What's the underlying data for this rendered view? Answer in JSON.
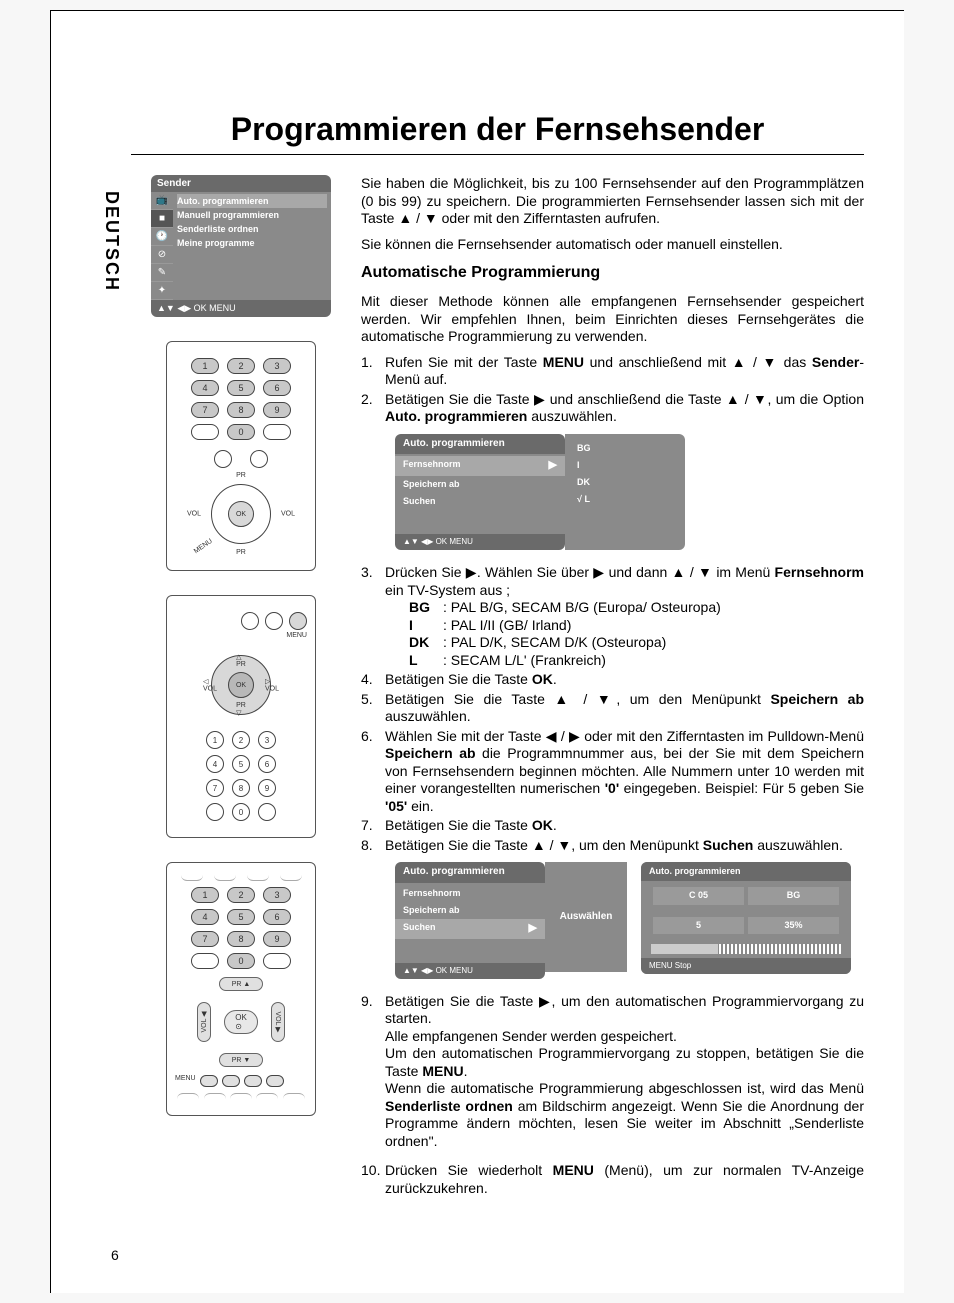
{
  "page_number": "6",
  "lang_tab": "DEUTSCH",
  "title": "Programmieren der Fernsehsender",
  "intro1": "Sie haben die Möglichkeit, bis zu 100 Fernsehsender auf den Programmplätzen (0 bis 99) zu speichern. Die programmierten Fernsehsender lassen sich mit der Taste ▲ / ▼ oder mit den Zifferntasten aufrufen.",
  "intro2": "Sie können die Fernsehsender automatisch oder manuell einstellen.",
  "section_heading": "Automatische Programmierung",
  "para_auto": "Mit dieser Methode können alle empfangenen Fernsehsender gespeichert werden. Wir empfehlen Ihnen, beim Einrichten dieses Fernsehgerätes die automatische Programmierung zu verwenden.",
  "steps": {
    "s1": "Rufen Sie mit der Taste <b>MENU</b> und anschließend mit ▲ / ▼ das <b>Sender</b>-Menü auf.",
    "s2": "Betätigen Sie die Taste ▶ und anschließend die Taste ▲ / ▼, um die Option <b>Auto. programmieren</b> auszuwählen.",
    "s3": "Drücken Sie ▶. Wählen Sie über ▶ und dann ▲ / ▼ im Menü <b>Fernsehnorm</b> ein TV-System aus ;",
    "s4": "Betätigen Sie die Taste <b>OK</b>.",
    "s5": "Betätigen Sie die Taste ▲ / ▼, um den Menüpunkt <b>Speichern ab</b> auszuwählen.",
    "s6": "Wählen Sie mit der Taste ◀ / ▶ oder mit den Zifferntasten im Pulldown-Menü <b>Speichern ab</b> die Programmnummer aus, bei der Sie mit dem Speichern von Fernsehsendern beginnen möchten. Alle Nummern unter 10 werden mit einer vorangestellten numerischen <b>'0'</b> eingegeben. Beispiel: Für 5 geben Sie <b>'05'</b> ein.",
    "s7": "Betätigen Sie die Taste <b>OK</b>.",
    "s8": "Betätigen Sie die Taste ▲ / ▼, um den Menüpunkt <b>Suchen</b> auszuwählen.",
    "s9": "Betätigen Sie die Taste ▶, um den automatischen Programmiervorgang zu starten.<br>Alle empfangenen Sender werden gespeichert.<br>Um den automatischen Programmiervorgang zu stoppen, betätigen Sie die Taste <b>MENU</b>.<br>Wenn die automatische Programmierung abgeschlossen ist, wird das Menü <b>Senderliste ordnen</b> am Bildschirm angezeigt. Wenn Sie die Anordnung der Programme ändern möchten, lesen Sie weiter im Abschnitt „Senderliste ordnen\".",
    "s10": "Drücken Sie wiederholt <b>MENU</b> (Menü), um zur normalen TV-Anzeige zurückzukehren."
  },
  "tv_systems": {
    "BG": ": PAL B/G, SECAM B/G (Europa/ Osteuropa)",
    "I": ": PAL I/II (GB/ Irland)",
    "DK": ": PAL D/K, SECAM D/K (Osteuropa)",
    "L": ": SECAM L/L' (Frankreich)"
  },
  "sender_menu": {
    "title": "Sender",
    "items": [
      "Auto. programmieren",
      "Manuell programmieren",
      "Senderliste ordnen",
      "Meine programme"
    ],
    "footer": "▲▼  ◀▶  OK  MENU"
  },
  "remote": {
    "ok": "OK",
    "pr": "PR",
    "vol": "VOL",
    "menu": "MENU",
    "numbers": [
      "1",
      "2",
      "3",
      "4",
      "5",
      "6",
      "7",
      "8",
      "9",
      "0"
    ]
  },
  "osd1": {
    "title": "Auto. programmieren",
    "items": [
      "Fernsehnorm",
      "Speichern ab",
      "Suchen"
    ],
    "footer": "▲▼  ◀▶  OK  MENU",
    "options": [
      "BG",
      "I",
      "DK",
      "L"
    ],
    "selected": "L"
  },
  "osd2": {
    "left_title": "Auto. programmieren",
    "left_items": [
      "Fernsehnorm",
      "Speichern ab",
      "Suchen"
    ],
    "left_footer": "▲▼  ◀▶  OK  MENU",
    "middle_label": "Auswählen",
    "right_title": "Auto. programmieren",
    "row1_a": "C 05",
    "row1_b": "BG",
    "row2_a": "5",
    "row2_b": "35%",
    "right_footer": "MENU    Stop"
  }
}
